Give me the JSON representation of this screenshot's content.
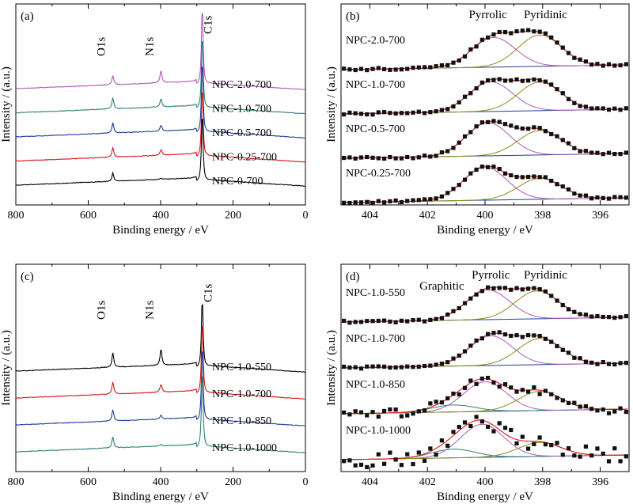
{
  "chart_data": [
    {
      "type": "line",
      "panel": "(a)",
      "xlabel": "Binding energy / eV",
      "ylabel": "Intensity / (a.u.)",
      "xlim": [
        800,
        0
      ],
      "xticks": [
        "800",
        "600",
        "400",
        "200",
        "0"
      ],
      "peaks": [
        {
          "label": "O1s",
          "x": 532
        },
        {
          "label": "N1s",
          "x": 399
        },
        {
          "label": "C1s",
          "x": 285
        }
      ],
      "series": [
        {
          "name": "NPC-2.0-700",
          "color": "#b05ab8",
          "offset": 4,
          "o": 0.45,
          "n": 0.62,
          "c": 4.0
        },
        {
          "name": "NPC-1.0-700",
          "color": "#2f7f7a",
          "offset": 3,
          "o": 0.55,
          "n": 0.4,
          "c": 3.8
        },
        {
          "name": "NPC-0.5-700",
          "color": "#1f3c9c",
          "offset": 2,
          "o": 0.5,
          "n": 0.3,
          "c": 3.7
        },
        {
          "name": "NPC-0.25-700",
          "color": "#d7191c",
          "offset": 1,
          "o": 0.45,
          "n": 0.28,
          "c": 3.6
        },
        {
          "name": "NPC-0-700",
          "color": "#000000",
          "offset": 0,
          "o": 0.4,
          "n": 0.05,
          "c": 3.5
        }
      ]
    },
    {
      "type": "line",
      "panel": "(b)",
      "xlabel": "Binding energy / eV",
      "ylabel": "Intensity / (a.u.)",
      "xlim": [
        405,
        395
      ],
      "xticks": [
        "404",
        "402",
        "400",
        "398",
        "396"
      ],
      "components": [
        {
          "label": "Pyrrolic",
          "color": "#b05ab8"
        },
        {
          "label": "Pyridinic",
          "color": "#8c8c1e"
        }
      ],
      "series": [
        {
          "name": "NPC-2.0-700",
          "pyrrolic": [
            399.7,
            0.85
          ],
          "pyridinic": [
            398.1,
            0.9
          ]
        },
        {
          "name": "NPC-1.0-700",
          "pyrrolic": [
            399.8,
            0.85
          ],
          "pyridinic": [
            398.1,
            0.82
          ]
        },
        {
          "name": "NPC-0.5-700",
          "pyrrolic": [
            399.9,
            0.95
          ],
          "pyridinic": [
            398.1,
            0.7
          ]
        },
        {
          "name": "NPC-0.25-700",
          "pyrrolic": [
            400.0,
            0.95
          ],
          "pyridinic": [
            398.1,
            0.6
          ]
        }
      ]
    },
    {
      "type": "line",
      "panel": "(c)",
      "xlabel": "Binding energy / eV",
      "ylabel": "Intensity / (a.u.)",
      "xlim": [
        800,
        0
      ],
      "xticks": [
        "800",
        "600",
        "400",
        "200",
        "0"
      ],
      "peaks": [
        {
          "label": "O1s",
          "x": 532
        },
        {
          "label": "N1s",
          "x": 399
        },
        {
          "label": "C1s",
          "x": 285
        }
      ],
      "series": [
        {
          "name": "NPC-1.0-550",
          "color": "#000000",
          "offset": 3,
          "o": 0.7,
          "n": 0.8,
          "c": 3.5
        },
        {
          "name": "NPC-1.0-700",
          "color": "#d7191c",
          "offset": 2,
          "o": 0.6,
          "n": 0.4,
          "c": 3.8
        },
        {
          "name": "NPC-1.0-850",
          "color": "#1f3c9c",
          "offset": 1,
          "o": 0.55,
          "n": 0.2,
          "c": 3.9
        },
        {
          "name": "NPC-1.0-1000",
          "color": "#2f7f7a",
          "offset": 0,
          "o": 0.55,
          "n": 0.08,
          "c": 4.0
        }
      ]
    },
    {
      "type": "line",
      "panel": "(d)",
      "xlabel": "Binding energy / eV",
      "ylabel": "Intensity / (a.u.)",
      "xlim": [
        405,
        395
      ],
      "xticks": [
        "404",
        "402",
        "400",
        "398",
        "396"
      ],
      "components": [
        {
          "label": "Graphitic",
          "color": "#2f7f7a"
        },
        {
          "label": "Pyrrolic",
          "color": "#b05ab8"
        },
        {
          "label": "Pyridinic",
          "color": "#8c8c1e"
        }
      ],
      "series": [
        {
          "name": "NPC-1.0-550",
          "graphitic": [
            401.1,
            0.0
          ],
          "pyrrolic": [
            399.9,
            0.85
          ],
          "pyridinic": [
            398.2,
            0.8
          ]
        },
        {
          "name": "NPC-1.0-700",
          "graphitic": [
            401.1,
            0.0
          ],
          "pyrrolic": [
            399.8,
            0.85
          ],
          "pyridinic": [
            398.1,
            0.75
          ]
        },
        {
          "name": "NPC-1.0-850",
          "graphitic": [
            401.1,
            0.2
          ],
          "pyrrolic": [
            400.0,
            0.85
          ],
          "pyridinic": [
            398.1,
            0.55
          ]
        },
        {
          "name": "NPC-1.0-1000",
          "graphitic": [
            401.1,
            0.25
          ],
          "pyrrolic": [
            400.1,
            0.95
          ],
          "pyridinic": [
            398.1,
            0.4
          ]
        }
      ]
    }
  ]
}
